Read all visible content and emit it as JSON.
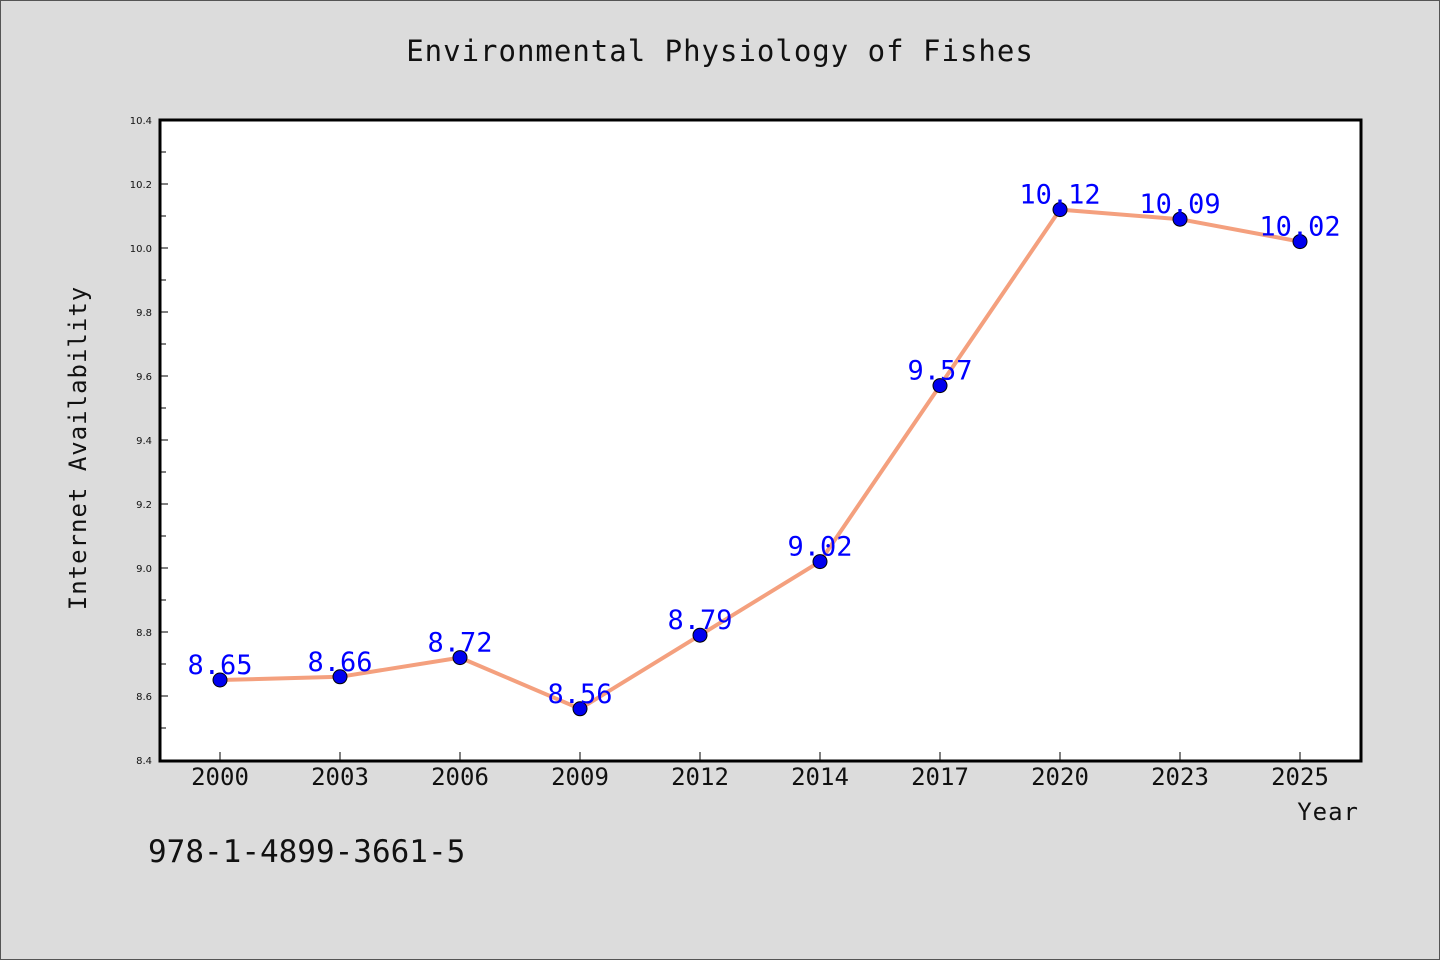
{
  "chart_data": {
    "type": "line",
    "title": "Environmental Physiology of Fishes",
    "xlabel": "Year",
    "ylabel": "Internet Availability",
    "categories": [
      "2000",
      "2003",
      "2006",
      "2009",
      "2012",
      "2014",
      "2017",
      "2020",
      "2023",
      "2025"
    ],
    "values": [
      8.65,
      8.66,
      8.72,
      8.56,
      8.79,
      9.02,
      9.57,
      10.12,
      10.09,
      10.02
    ],
    "data_labels": [
      "8.65",
      "8.66",
      "8.72",
      "8.56",
      "8.79",
      "9.02",
      "9.57",
      "10.12",
      "10.09",
      "10.02"
    ],
    "ylim": [
      8.4,
      10.4
    ],
    "yticks": [
      "8.4",
      "8.6",
      "8.8",
      "9.0",
      "9.2",
      "9.4",
      "9.6",
      "9.8",
      "10.0",
      "10.2",
      "10.4"
    ],
    "grid": false,
    "colors": {
      "line": "#f4a07e",
      "marker": "#0000ee",
      "label": "#0000ff",
      "plot_bg": "#ffffff",
      "page_bg": "#dcdcdc"
    }
  },
  "footer": {
    "code": "978-1-4899-3661-5"
  }
}
